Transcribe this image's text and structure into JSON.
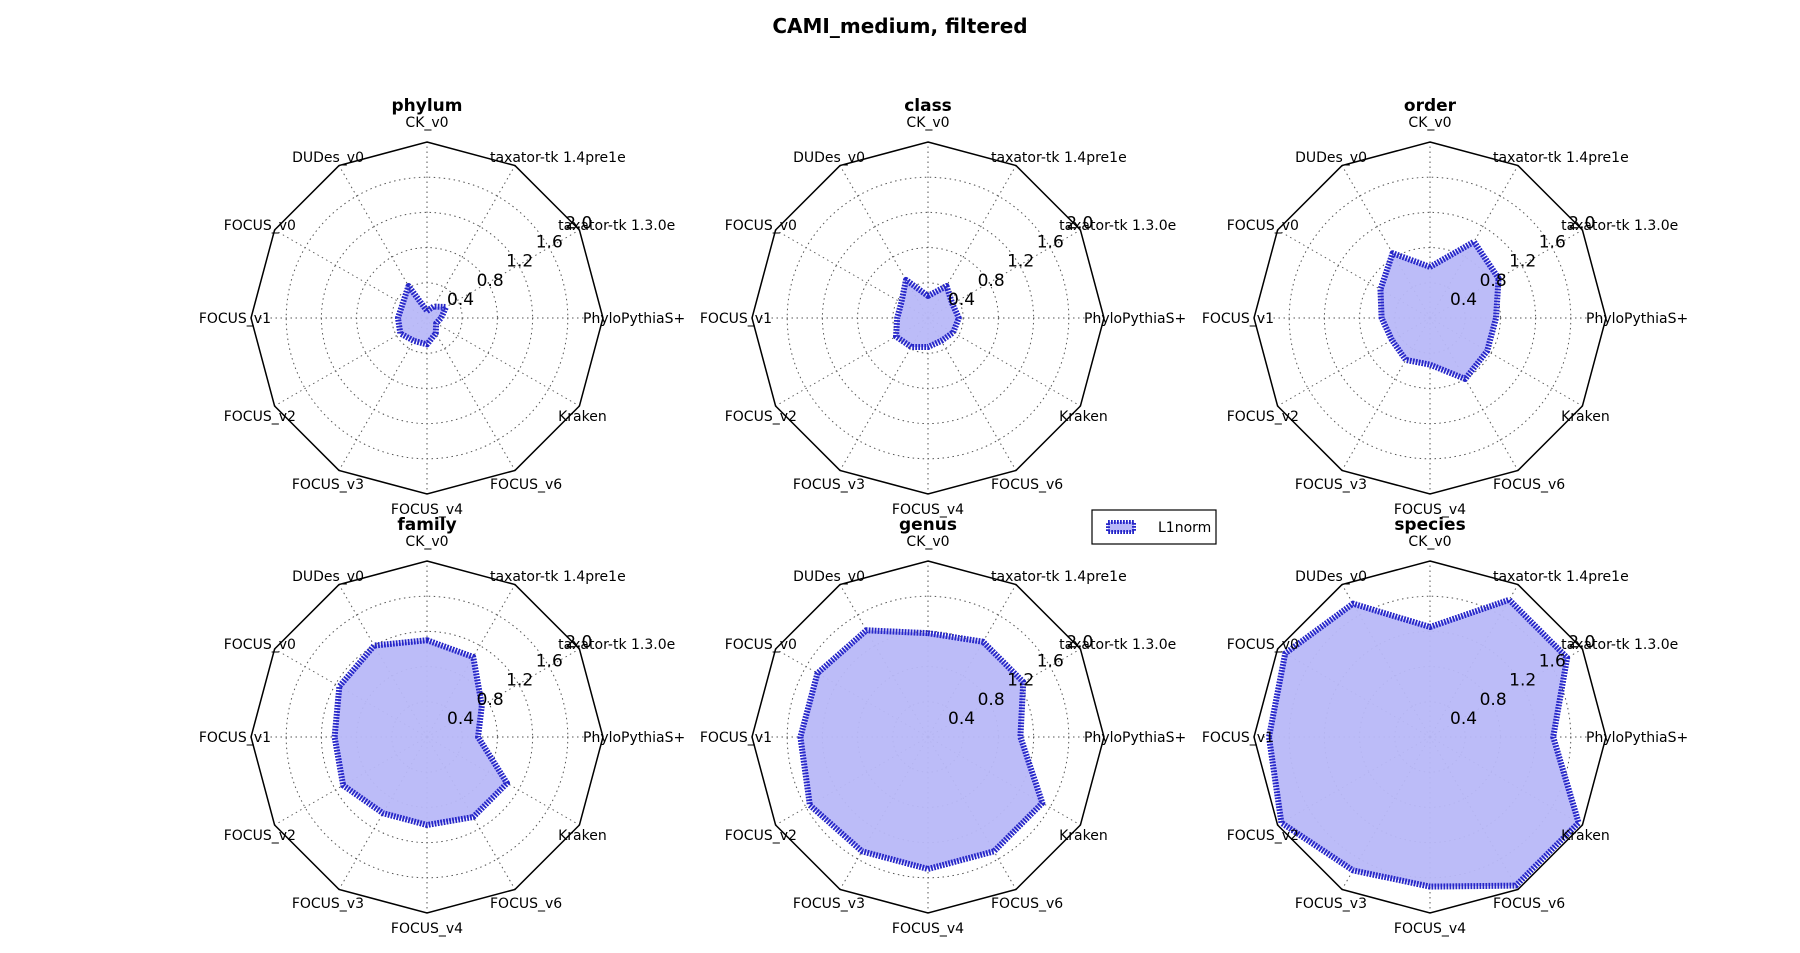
{
  "figure_title": "CAMI_medium, filtered",
  "colors": {
    "line": "#2626c8",
    "fill": "#b8b8f8",
    "frame": "#000000",
    "grid": "#555555"
  },
  "chart_data": [
    {
      "type": "radar",
      "title": "phylum",
      "axes": [
        "CK_v0",
        "taxator-tk 1.4pre1e",
        "taxator-tk 1.3.0e",
        "PhyloPythiaS+",
        "Kraken",
        "FOCUS_v6",
        "FOCUS_v4",
        "FOCUS_v3",
        "FOCUS_v2",
        "FOCUS_v1",
        "FOCUS_v0",
        "DUDes_v0"
      ],
      "rlim": [
        0,
        2.0
      ],
      "rticks": [
        "0.4",
        "0.8",
        "1.2",
        "1.6",
        "2.0"
      ],
      "series": [
        {
          "name": "L1norm",
          "values": [
            0.08,
            0.15,
            0.25,
            0.16,
            0.12,
            0.2,
            0.3,
            0.3,
            0.35,
            0.33,
            0.32,
            0.42
          ]
        }
      ]
    },
    {
      "type": "radar",
      "title": "class",
      "axes": [
        "CK_v0",
        "taxator-tk 1.4pre1e",
        "taxator-tk 1.3.0e",
        "PhyloPythiaS+",
        "Kraken",
        "FOCUS_v6",
        "FOCUS_v4",
        "FOCUS_v3",
        "FOCUS_v2",
        "FOCUS_v1",
        "FOCUS_v0",
        "DUDes_v0"
      ],
      "rlim": [
        0,
        2.0
      ],
      "rticks": [
        "0.4",
        "0.8",
        "1.2",
        "1.6",
        "2.0"
      ],
      "series": [
        {
          "name": "L1norm",
          "values": [
            0.25,
            0.42,
            0.32,
            0.35,
            0.33,
            0.3,
            0.33,
            0.38,
            0.42,
            0.35,
            0.35,
            0.5
          ]
        }
      ]
    },
    {
      "type": "radar",
      "title": "order",
      "axes": [
        "CK_v0",
        "taxator-tk 1.4pre1e",
        "taxator-tk 1.3.0e",
        "PhyloPythiaS+",
        "Kraken",
        "FOCUS_v6",
        "FOCUS_v4",
        "FOCUS_v3",
        "FOCUS_v2",
        "FOCUS_v1",
        "FOCUS_v0",
        "DUDes_v0"
      ],
      "rlim": [
        0,
        2.0
      ],
      "rticks": [
        "0.4",
        "0.8",
        "1.2",
        "1.6",
        "2.0"
      ],
      "series": [
        {
          "name": "L1norm",
          "values": [
            0.58,
            1.0,
            0.9,
            0.75,
            0.75,
            0.8,
            0.53,
            0.55,
            0.5,
            0.55,
            0.65,
            0.85
          ]
        }
      ]
    },
    {
      "type": "radar",
      "title": "family",
      "axes": [
        "CK_v0",
        "taxator-tk 1.4pre1e",
        "taxator-tk 1.3.0e",
        "PhyloPythiaS+",
        "Kraken",
        "FOCUS_v6",
        "FOCUS_v4",
        "FOCUS_v3",
        "FOCUS_v2",
        "FOCUS_v1",
        "FOCUS_v0",
        "DUDes_v0"
      ],
      "rlim": [
        0,
        2.0
      ],
      "rticks": [
        "0.4",
        "0.8",
        "1.2",
        "1.6",
        "2.0"
      ],
      "series": [
        {
          "name": "L1norm",
          "values": [
            1.1,
            1.05,
            0.72,
            0.58,
            1.05,
            1.05,
            1.0,
            1.0,
            1.1,
            1.05,
            1.15,
            1.2
          ]
        }
      ]
    },
    {
      "type": "radar",
      "title": "genus",
      "axes": [
        "CK_v0",
        "taxator-tk 1.4pre1e",
        "taxator-tk 1.3.0e",
        "PhyloPythiaS+",
        "Kraken",
        "FOCUS_v6",
        "FOCUS_v4",
        "FOCUS_v3",
        "FOCUS_v2",
        "FOCUS_v1",
        "FOCUS_v0",
        "DUDes_v0"
      ],
      "rlim": [
        0,
        2.0
      ],
      "rticks": [
        "0.4",
        "0.8",
        "1.2",
        "1.6",
        "2.0"
      ],
      "series": [
        {
          "name": "L1norm",
          "values": [
            1.18,
            1.25,
            1.25,
            1.05,
            1.5,
            1.5,
            1.5,
            1.5,
            1.55,
            1.45,
            1.45,
            1.4
          ]
        }
      ]
    },
    {
      "type": "radar",
      "title": "species",
      "axes": [
        "CK_v0",
        "taxator-tk 1.4pre1e",
        "taxator-tk 1.3.0e",
        "PhyloPythiaS+",
        "Kraken",
        "FOCUS_v6",
        "FOCUS_v4",
        "FOCUS_v3",
        "FOCUS_v2",
        "FOCUS_v1",
        "FOCUS_v0",
        "DUDes_v0"
      ],
      "rlim": [
        0,
        2.0
      ],
      "rticks": [
        "0.4",
        "0.8",
        "1.2",
        "1.6",
        "2.0"
      ],
      "series": [
        {
          "name": "L1norm",
          "values": [
            1.25,
            1.8,
            1.8,
            1.4,
            1.95,
            1.95,
            1.7,
            1.75,
            1.95,
            1.83,
            1.9,
            1.75
          ]
        }
      ]
    }
  ],
  "legend": {
    "label": "L1norm",
    "placement": "between panels, right of genus title"
  }
}
